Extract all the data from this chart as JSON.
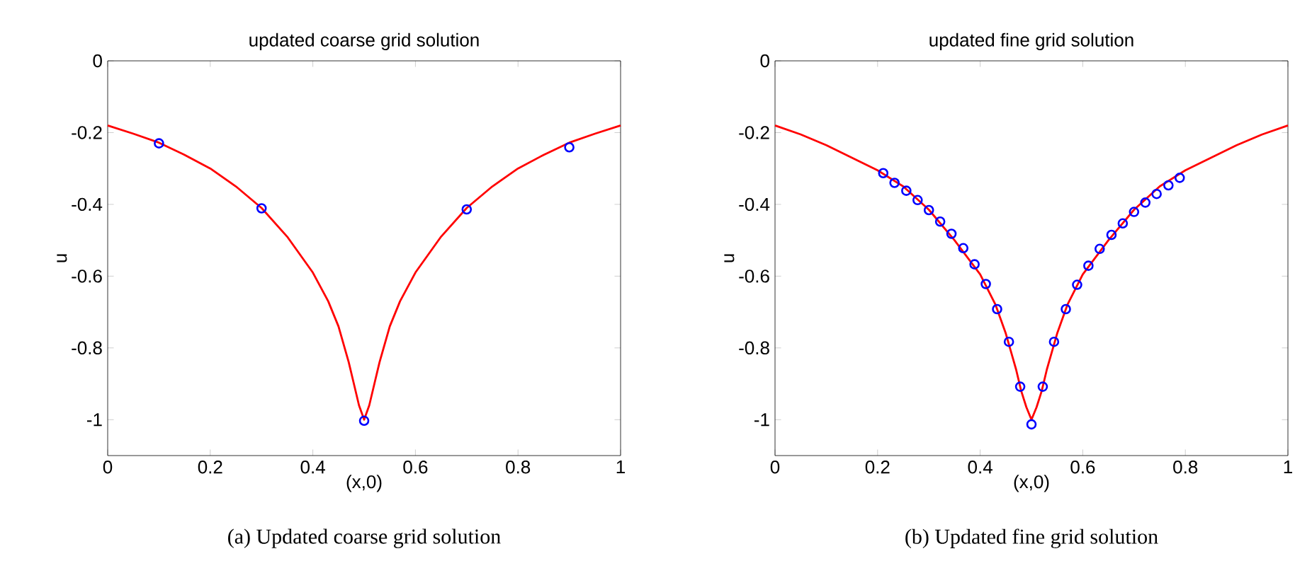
{
  "chart_data": [
    {
      "type": "line",
      "title": "updated coarse grid solution",
      "xlabel": "(x,0)",
      "ylabel": "u",
      "annotations": [
        "(a) Updated coarse grid solution"
      ],
      "xlim": [
        0,
        1
      ],
      "ylim": [
        -1.1,
        0
      ],
      "xticks": [
        0,
        0.2,
        0.4,
        0.6,
        0.8,
        1
      ],
      "yticks": [
        0,
        -0.2,
        -0.4,
        -0.6,
        -0.8,
        -1
      ],
      "series": [
        {
          "color": "#ff0000",
          "marker": "none",
          "x": [
            0,
            0.05,
            0.1,
            0.15,
            0.2,
            0.25,
            0.3,
            0.35,
            0.4,
            0.43,
            0.45,
            0.47,
            0.48,
            0.49,
            0.5,
            0.51,
            0.52,
            0.53,
            0.55,
            0.57,
            0.6,
            0.65,
            0.7,
            0.75,
            0.8,
            0.85,
            0.9,
            0.95,
            1
          ],
          "values": [
            -0.18,
            -0.203,
            -0.228,
            -0.262,
            -0.3,
            -0.35,
            -0.41,
            -0.49,
            -0.59,
            -0.67,
            -0.74,
            -0.84,
            -0.9,
            -0.96,
            -1.0,
            -0.96,
            -0.9,
            -0.84,
            -0.74,
            -0.67,
            -0.59,
            -0.49,
            -0.41,
            -0.35,
            -0.3,
            -0.262,
            -0.228,
            -0.203,
            -0.18
          ]
        },
        {
          "type": "scatter",
          "color": "#0000ff",
          "marker": "circle",
          "x": [
            0.1,
            0.3,
            0.5,
            0.7,
            0.9
          ],
          "values": [
            -0.23,
            -0.411,
            -1.003,
            -0.414,
            -0.241
          ]
        }
      ]
    },
    {
      "type": "line",
      "title": "updated fine grid solution",
      "xlabel": "(x,0)",
      "ylabel": "u",
      "annotations": [
        "(b) Updated fine grid solution"
      ],
      "xlim": [
        0,
        1
      ],
      "ylim": [
        -1.1,
        0
      ],
      "xticks": [
        0,
        0.2,
        0.4,
        0.6,
        0.8,
        1
      ],
      "yticks": [
        0,
        -0.2,
        -0.4,
        -0.6,
        -0.8,
        -1
      ],
      "series": [
        {
          "color": "#ff0000",
          "marker": "none",
          "x": [
            0,
            0.05,
            0.1,
            0.15,
            0.2,
            0.25,
            0.3,
            0.35,
            0.4,
            0.43,
            0.45,
            0.47,
            0.48,
            0.49,
            0.5,
            0.51,
            0.52,
            0.53,
            0.55,
            0.57,
            0.6,
            0.65,
            0.7,
            0.75,
            0.8,
            0.85,
            0.9,
            0.95,
            1
          ],
          "values": [
            -0.18,
            -0.205,
            -0.235,
            -0.27,
            -0.305,
            -0.35,
            -0.415,
            -0.5,
            -0.595,
            -0.68,
            -0.76,
            -0.86,
            -0.92,
            -0.965,
            -1.0,
            -0.965,
            -0.92,
            -0.86,
            -0.76,
            -0.68,
            -0.595,
            -0.5,
            -0.415,
            -0.35,
            -0.305,
            -0.27,
            -0.235,
            -0.205,
            -0.18
          ]
        },
        {
          "type": "scatter",
          "color": "#0000ff",
          "marker": "circle",
          "x": [
            0.211,
            0.233,
            0.256,
            0.278,
            0.3,
            0.322,
            0.344,
            0.367,
            0.389,
            0.411,
            0.433,
            0.456,
            0.478,
            0.5,
            0.522,
            0.544,
            0.567,
            0.589,
            0.611,
            0.633,
            0.656,
            0.678,
            0.7,
            0.722,
            0.744,
            0.767,
            0.789
          ],
          "values": [
            -0.313,
            -0.34,
            -0.362,
            -0.388,
            -0.416,
            -0.448,
            -0.482,
            -0.522,
            -0.567,
            -0.622,
            -0.692,
            -0.783,
            -0.908,
            -1.013,
            -0.908,
            -0.783,
            -0.692,
            -0.624,
            -0.571,
            -0.524,
            -0.485,
            -0.453,
            -0.421,
            -0.395,
            -0.371,
            -0.347,
            -0.326
          ]
        }
      ]
    }
  ]
}
